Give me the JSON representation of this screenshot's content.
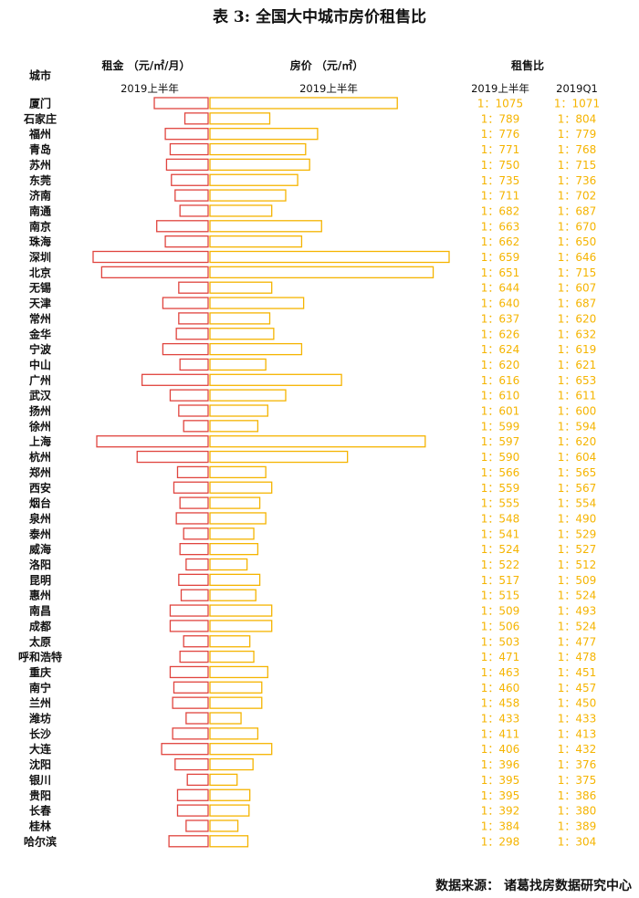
{
  "title": "表 3:  全国大中城市房价租售比",
  "headers": {
    "city": "城市",
    "rent": "租金 （元/㎡/月）",
    "price": "房价 （元/㎡）",
    "ratio": "租售比",
    "rent_period": "2019上半年",
    "price_period": "2019上半年",
    "ratio_period_a": "2019上半年",
    "ratio_period_b": "2019Q1"
  },
  "source": "数据来源：  诸葛找房数据研究中心",
  "colors": {
    "rent": "#e0443e",
    "price": "#f5b400",
    "ratio_text": "#f5b400"
  },
  "chart_data": {
    "type": "bar",
    "title": "表 3:  全国大中城市房价租售比",
    "categories": [
      "厦门",
      "石家庄",
      "福州",
      "青岛",
      "苏州",
      "东莞",
      "济南",
      "南通",
      "南京",
      "珠海",
      "深圳",
      "北京",
      "无锡",
      "天津",
      "常州",
      "金华",
      "宁波",
      "中山",
      "广州",
      "武汉",
      "扬州",
      "徐州",
      "上海",
      "杭州",
      "郑州",
      "西安",
      "烟台",
      "泉州",
      "泰州",
      "威海",
      "洛阳",
      "昆明",
      "惠州",
      "南昌",
      "成都",
      "太原",
      "呼和浩特",
      "重庆",
      "南宁",
      "兰州",
      "潍坊",
      "长沙",
      "大连",
      "沈阳",
      "银川",
      "贵阳",
      "长春",
      "桂林",
      "哈尔滨"
    ],
    "series": [
      {
        "name": "租金 （元/㎡/月）",
        "period": "2019上半年",
        "values": [
          44,
          19,
          35,
          31,
          34,
          30,
          27,
          23,
          42,
          35,
          94,
          87,
          24,
          37,
          24,
          26,
          37,
          23,
          54,
          31,
          24,
          20,
          91,
          58,
          25,
          28,
          23,
          26,
          20,
          23,
          18,
          24,
          22,
          31,
          31,
          20,
          23,
          31,
          28,
          29,
          18,
          29,
          38,
          27,
          17,
          25,
          25,
          18,
          32
        ]
      },
      {
        "name": "房价 （元/㎡）",
        "period": "2019上半年",
        "values": [
          47000,
          15000,
          27000,
          24000,
          25000,
          22000,
          19000,
          15500,
          28000,
          23000,
          60000,
          56000,
          15500,
          23500,
          15000,
          16000,
          23000,
          14000,
          33000,
          19000,
          14500,
          12000,
          54000,
          34500,
          14000,
          15500,
          12500,
          14000,
          11000,
          12000,
          9300,
          12500,
          11500,
          15500,
          15500,
          10000,
          11000,
          14500,
          13000,
          13000,
          7800,
          12000,
          15500,
          10800,
          6800,
          10000,
          9800,
          7000,
          9500
        ]
      },
      {
        "name": "2019上半年",
        "values": [
          "1：1075",
          "1：789",
          "1：776",
          "1：771",
          "1：750",
          "1：735",
          "1：711",
          "1：682",
          "1：663",
          "1：662",
          "1：659",
          "1：651",
          "1：644",
          "1：640",
          "1：637",
          "1：626",
          "1：624",
          "1：620",
          "1：616",
          "1：610",
          "1：601",
          "1：599",
          "1：597",
          "1：590",
          "1：566",
          "1：559",
          "1：555",
          "1：548",
          "1：541",
          "1：524",
          "1：522",
          "1：517",
          "1：515",
          "1：509",
          "1：506",
          "1：503",
          "1：471",
          "1：463",
          "1：460",
          "1：458",
          "1：433",
          "1：411",
          "1：406",
          "1：396",
          "1：395",
          "1：395",
          "1：392",
          "1：384",
          "1：298"
        ]
      },
      {
        "name": "2019Q1",
        "values": [
          "1：1071",
          "1：804",
          "1：779",
          "1：768",
          "1：715",
          "1：736",
          "1：702",
          "1：687",
          "1：670",
          "1：650",
          "1：646",
          "1：715",
          "1：607",
          "1：687",
          "1：620",
          "1：632",
          "1：619",
          "1：621",
          "1：653",
          "1：611",
          "1：600",
          "1：594",
          "1：620",
          "1：604",
          "1：565",
          "1：567",
          "1：554",
          "1：490",
          "1：529",
          "1：527",
          "1：512",
          "1：509",
          "1：524",
          "1：493",
          "1：524",
          "1：477",
          "1：478",
          "1：451",
          "1：457",
          "1：450",
          "1：433",
          "1：413",
          "1：432",
          "1：376",
          "1：375",
          "1：386",
          "1：380",
          "1：389",
          "1：304"
        ]
      }
    ],
    "legend": "none",
    "grid": false
  }
}
